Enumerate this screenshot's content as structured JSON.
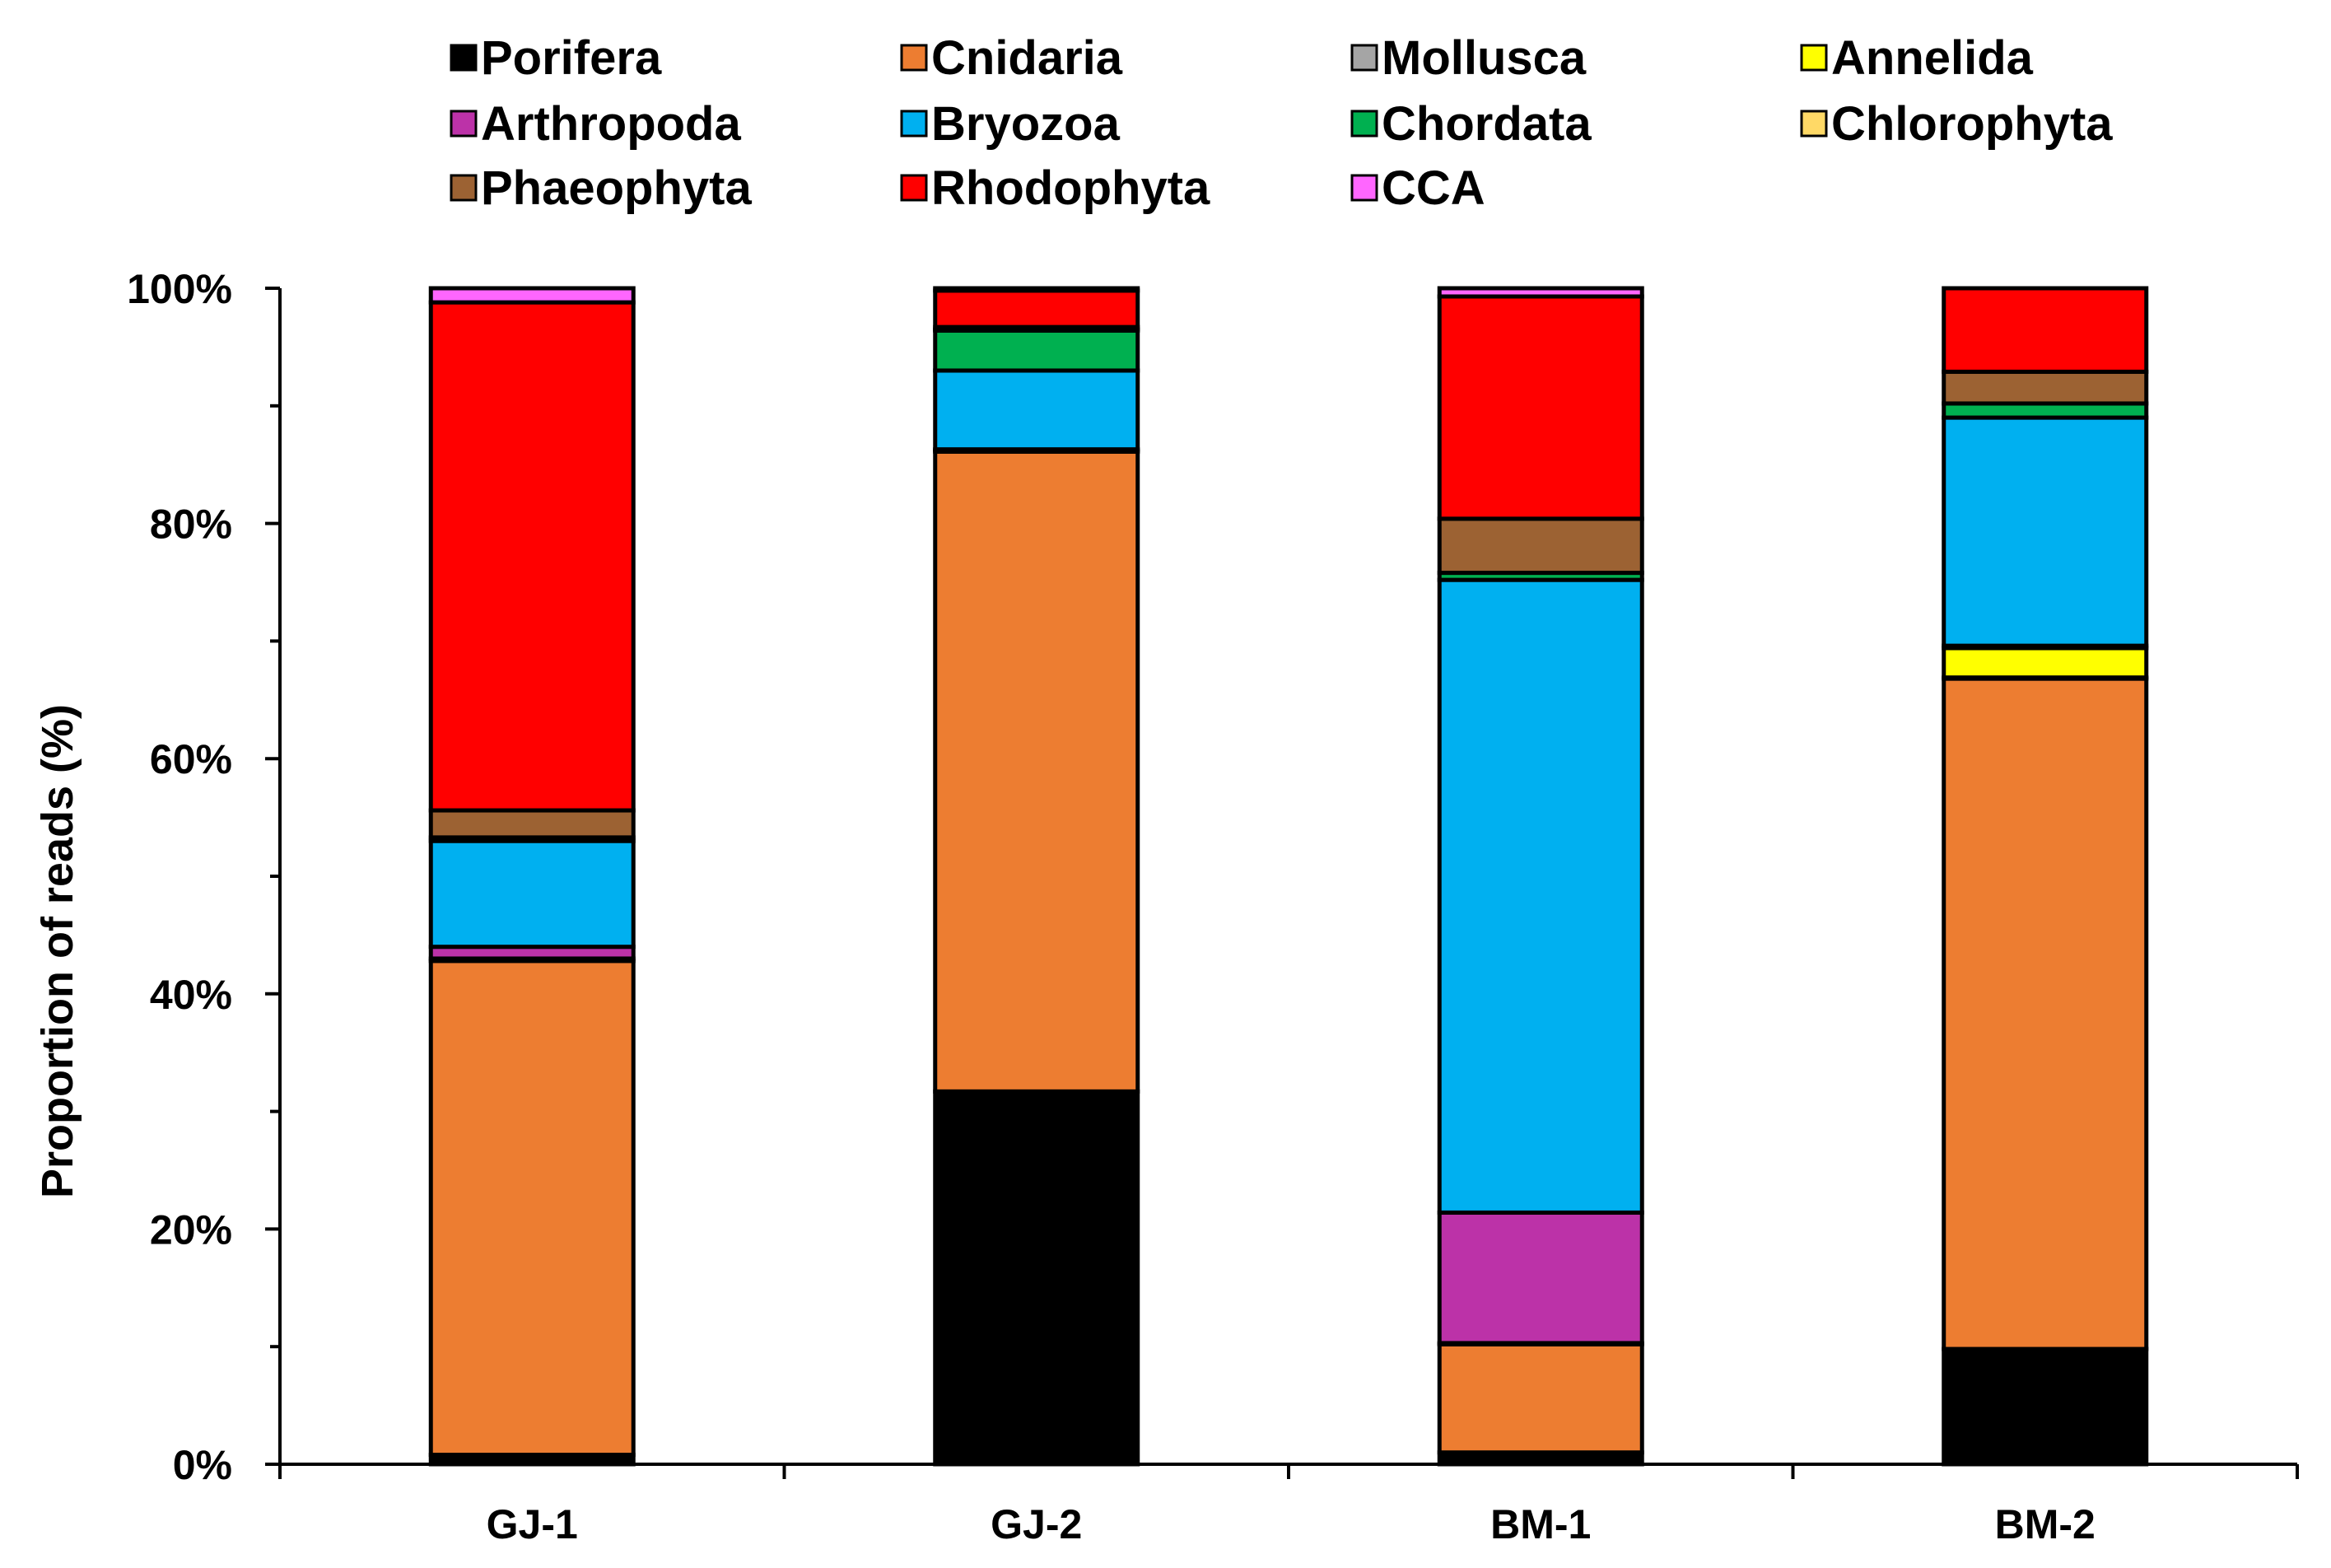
{
  "chart_data": {
    "type": "bar",
    "stacked": true,
    "title": "",
    "xlabel": "",
    "ylabel": "Proportion of reads (%)",
    "ylim": [
      0,
      100
    ],
    "yticks": [
      "0%",
      "20%",
      "40%",
      "60%",
      "80%",
      "100%"
    ],
    "categories": [
      "GJ-1",
      "GJ-2",
      "BM-1",
      "BM-2"
    ],
    "legend_position": "top",
    "series": [
      {
        "name": "Porifera",
        "color": "#000000",
        "values": [
          0.8,
          31.7,
          1.0,
          9.8
        ]
      },
      {
        "name": "Cnidaria",
        "color": "#ED7D31",
        "values": [
          42.0,
          54.4,
          9.2,
          57.0
        ]
      },
      {
        "name": "Mollusca",
        "color": "#A5A5A5",
        "values": [
          0.2,
          0.1,
          0.1,
          0.1
        ]
      },
      {
        "name": "Annelida",
        "color": "#FFFF00",
        "values": [
          0.0,
          0.0,
          0.0,
          2.5
        ]
      },
      {
        "name": "Arthropoda",
        "color": "#BC32A8",
        "values": [
          1.0,
          0.1,
          11.1,
          0.2
        ]
      },
      {
        "name": "Bryozoa",
        "color": "#00B0F0",
        "values": [
          9.0,
          6.7,
          53.8,
          19.4
        ]
      },
      {
        "name": "Chordata",
        "color": "#00B050",
        "values": [
          0.3,
          3.4,
          0.6,
          1.2
        ]
      },
      {
        "name": "Chlorophyta",
        "color": "#FFD966",
        "values": [
          0.0,
          0.1,
          0.0,
          0.0
        ]
      },
      {
        "name": "Phaeophyta",
        "color": "#9C6233",
        "values": [
          2.3,
          0.2,
          4.6,
          2.7
        ]
      },
      {
        "name": "Rhodophyta",
        "color": "#FF0000",
        "values": [
          43.2,
          3.1,
          18.9,
          7.1
        ]
      },
      {
        "name": "CCA",
        "color": "#FF66FF",
        "values": [
          1.2,
          0.2,
          0.7,
          0.0
        ]
      }
    ]
  }
}
